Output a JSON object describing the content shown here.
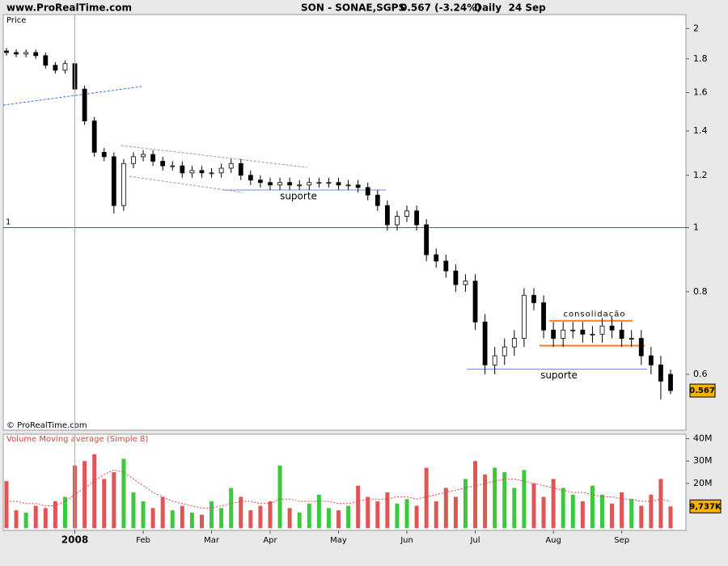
{
  "header": {
    "site": "www.ProRealTime.com",
    "symbol": "SON - SONAE,SGPS",
    "quote": "0.567 (-3.24%)",
    "period": "Daily  24 Sep"
  },
  "chart_data": [
    {
      "type": "candlestick",
      "title": "Price",
      "credit": "© ProRealTime.com",
      "log_scale": true,
      "grid": false,
      "open": [
        1.85,
        1.84,
        1.83,
        1.84,
        1.82,
        1.76,
        1.73,
        1.77,
        1.62,
        1.45,
        1.3,
        1.28,
        1.08,
        1.25,
        1.28,
        1.29,
        1.26,
        1.24,
        1.24,
        1.21,
        1.22,
        1.21,
        1.21,
        1.23,
        1.25,
        1.2,
        1.18,
        1.17,
        1.16,
        1.17,
        1.16,
        1.16,
        1.17,
        1.17,
        1.17,
        1.16,
        1.16,
        1.15,
        1.12,
        1.08,
        1.01,
        1.04,
        1.06,
        1.01,
        0.91,
        0.89,
        0.86,
        0.82,
        0.83,
        0.72,
        0.62,
        0.64,
        0.66,
        0.68,
        0.79,
        0.77,
        0.7,
        0.68,
        0.7,
        0.7,
        0.69,
        0.69,
        0.71,
        0.7,
        0.68,
        0.68,
        0.64,
        0.62,
        0.6
      ],
      "high": [
        1.87,
        1.86,
        1.86,
        1.86,
        1.84,
        1.78,
        1.79,
        1.79,
        1.64,
        1.47,
        1.32,
        1.3,
        1.27,
        1.3,
        1.31,
        1.31,
        1.28,
        1.26,
        1.26,
        1.24,
        1.24,
        1.23,
        1.25,
        1.27,
        1.27,
        1.22,
        1.2,
        1.19,
        1.19,
        1.19,
        1.18,
        1.19,
        1.19,
        1.19,
        1.19,
        1.18,
        1.18,
        1.17,
        1.14,
        1.1,
        1.06,
        1.08,
        1.08,
        1.03,
        0.93,
        0.91,
        0.88,
        0.85,
        0.85,
        0.74,
        0.66,
        0.68,
        0.7,
        0.81,
        0.81,
        0.79,
        0.72,
        0.72,
        0.72,
        0.72,
        0.71,
        0.73,
        0.73,
        0.72,
        0.7,
        0.7,
        0.66,
        0.64,
        0.61
      ],
      "low": [
        1.82,
        1.81,
        1.81,
        1.8,
        1.74,
        1.71,
        1.71,
        1.6,
        1.43,
        1.28,
        1.26,
        1.05,
        1.06,
        1.23,
        1.26,
        1.24,
        1.22,
        1.22,
        1.19,
        1.19,
        1.19,
        1.19,
        1.19,
        1.21,
        1.18,
        1.16,
        1.15,
        1.14,
        1.14,
        1.14,
        1.14,
        1.14,
        1.15,
        1.15,
        1.14,
        1.14,
        1.13,
        1.1,
        1.06,
        0.99,
        0.99,
        1.02,
        0.99,
        0.89,
        0.87,
        0.84,
        0.8,
        0.8,
        0.7,
        0.6,
        0.6,
        0.62,
        0.64,
        0.66,
        0.75,
        0.68,
        0.66,
        0.66,
        0.68,
        0.67,
        0.67,
        0.67,
        0.68,
        0.66,
        0.66,
        0.62,
        0.6,
        0.55,
        0.56
      ],
      "close": [
        1.84,
        1.83,
        1.84,
        1.82,
        1.76,
        1.73,
        1.77,
        1.62,
        1.45,
        1.3,
        1.28,
        1.08,
        1.25,
        1.28,
        1.29,
        1.26,
        1.24,
        1.24,
        1.21,
        1.22,
        1.21,
        1.21,
        1.23,
        1.25,
        1.2,
        1.18,
        1.17,
        1.16,
        1.17,
        1.16,
        1.16,
        1.17,
        1.17,
        1.17,
        1.16,
        1.16,
        1.15,
        1.12,
        1.08,
        1.01,
        1.04,
        1.06,
        1.01,
        0.91,
        0.89,
        0.86,
        0.82,
        0.83,
        0.72,
        0.62,
        0.64,
        0.66,
        0.68,
        0.79,
        0.77,
        0.7,
        0.68,
        0.7,
        0.7,
        0.69,
        0.69,
        0.71,
        0.7,
        0.68,
        0.68,
        0.64,
        0.62,
        0.586,
        0.567
      ],
      "ylim": [
        0.494,
        2.1
      ],
      "yticks": [
        0.6,
        0.8,
        1,
        1.2,
        1.4,
        1.6,
        1.8,
        2
      ],
      "color_up": "#ffffff",
      "color_down": "#000000",
      "last_price_color": "#f5b400",
      "reference_line": {
        "value": 1,
        "color": "#3a5fd0"
      },
      "annotations": [
        {
          "text": "suporte",
          "value": 1.14,
          "color": "#6f93e0"
        },
        {
          "text": "suporte",
          "value": 0.611,
          "color": "#6f93e0"
        },
        {
          "text": "consolidação",
          "value": 0.723,
          "color": "#ff7a1a"
        },
        {
          "text": null,
          "value": 0.663,
          "color": "#ff7a1a"
        }
      ]
    },
    {
      "type": "volume",
      "title": "Volume Moving average (Simple 8)",
      "categories": [
        null,
        null,
        null,
        null,
        null,
        null,
        null,
        "2008",
        null,
        null,
        null,
        null,
        null,
        null,
        "Feb",
        null,
        null,
        null,
        null,
        null,
        null,
        "Mar",
        null,
        null,
        null,
        null,
        null,
        "Apr",
        null,
        null,
        null,
        null,
        null,
        null,
        "May",
        null,
        null,
        null,
        null,
        null,
        null,
        "Jun",
        null,
        null,
        null,
        null,
        null,
        null,
        "Jul",
        null,
        null,
        null,
        null,
        null,
        null,
        null,
        "Aug",
        null,
        null,
        null,
        null,
        null,
        null,
        "Sep",
        null,
        null,
        null,
        null,
        null
      ],
      "values": [
        21000000,
        8000000,
        7000000,
        10000000,
        9000000,
        12000000,
        14000000,
        28000000,
        30000000,
        33000000,
        22000000,
        25000000,
        31000000,
        16000000,
        12000000,
        9000000,
        14000000,
        8000000,
        10000000,
        7000000,
        6000000,
        12000000,
        9000000,
        18000000,
        14000000,
        8000000,
        10000000,
        12000000,
        28000000,
        9000000,
        7000000,
        11000000,
        15000000,
        9000000,
        8000000,
        10000000,
        19000000,
        14000000,
        12000000,
        16000000,
        11000000,
        13000000,
        10000000,
        27000000,
        12000000,
        18000000,
        14000000,
        22000000,
        30000000,
        24000000,
        27000000,
        25000000,
        18000000,
        26000000,
        20000000,
        14000000,
        22000000,
        18000000,
        15000000,
        12000000,
        19000000,
        15000000,
        11000000,
        16000000,
        13000000,
        10000000,
        15000000,
        22000000,
        9737000
      ],
      "moving_average": [
        12000000,
        12000000,
        11000000,
        11000000,
        10000000,
        10000000,
        12000000,
        15000000,
        18000000,
        21000000,
        24000000,
        26000000,
        25000000,
        22000000,
        19000000,
        16000000,
        14000000,
        12000000,
        11000000,
        10000000,
        9000000,
        9000000,
        10000000,
        11000000,
        12000000,
        12000000,
        11000000,
        11000000,
        13000000,
        13000000,
        12000000,
        12000000,
        12000000,
        12000000,
        11000000,
        11000000,
        12000000,
        13000000,
        13000000,
        13000000,
        14000000,
        14000000,
        13000000,
        14000000,
        15000000,
        16000000,
        17000000,
        18000000,
        19000000,
        20000000,
        21000000,
        22000000,
        22000000,
        21000000,
        20000000,
        19000000,
        18000000,
        17000000,
        16000000,
        16000000,
        15000000,
        14000000,
        14000000,
        13000000,
        13000000,
        12000000,
        12000000,
        13000000,
        12000000
      ],
      "last_label": "9,737K",
      "color_up": "#3ec83e",
      "color_down": "#e05555",
      "ma_color": "#d94040",
      "last_label_color": "#f5b400",
      "ylim": [
        -1000000,
        42000000
      ],
      "yticks": [
        {
          "value": 20000000,
          "label": "20M"
        },
        {
          "value": 30000000,
          "label": "30M"
        },
        {
          "value": 40000000,
          "label": "40M"
        }
      ]
    }
  ]
}
